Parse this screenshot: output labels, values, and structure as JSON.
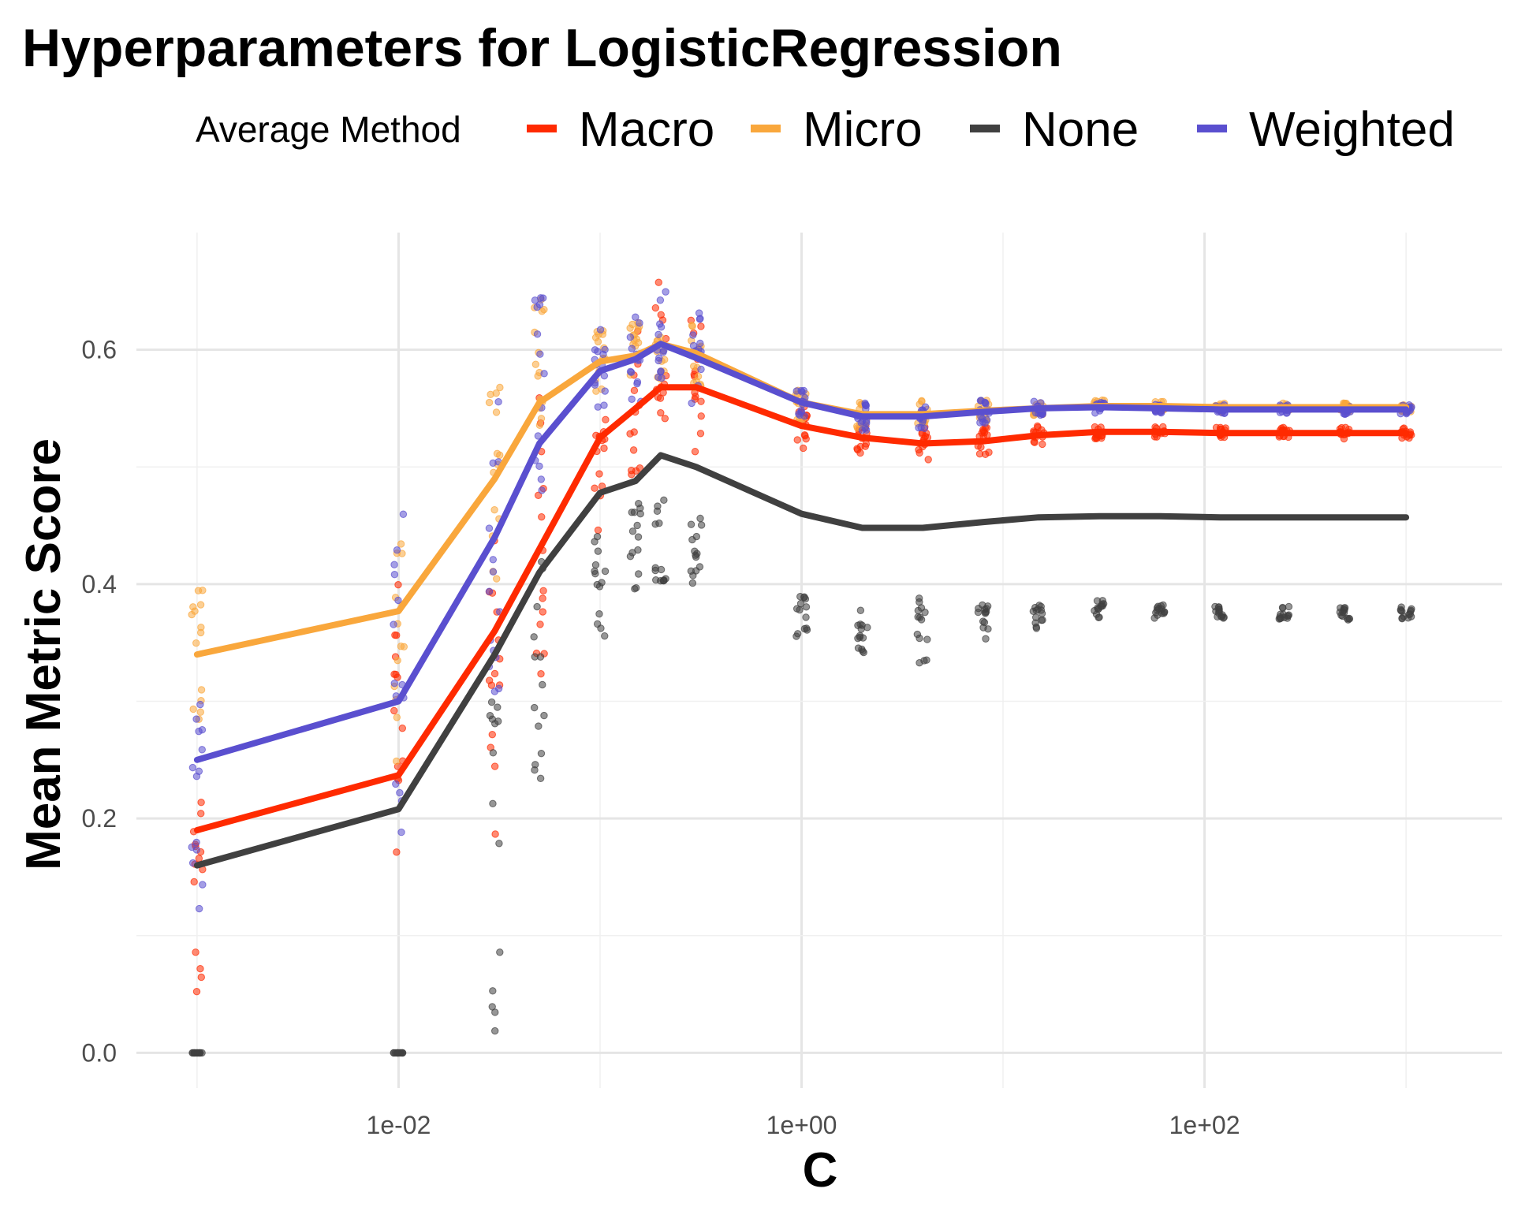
{
  "chart_data": {
    "type": "line",
    "title": "Hyperparameters for LogisticRegression",
    "xlabel": "C",
    "ylabel": "Mean Metric Score",
    "x_scale": "log10",
    "xlim": [
      0.0005,
      3000
    ],
    "ylim": [
      -0.03,
      0.7
    ],
    "x_ticks": [
      0.01,
      1,
      100
    ],
    "x_tick_labels": [
      "1e-02",
      "1e+00",
      "1e+02"
    ],
    "y_ticks": [
      0.0,
      0.2,
      0.4,
      0.6
    ],
    "y_tick_labels": [
      "0.0",
      "0.2",
      "0.4",
      "0.6"
    ],
    "grid": true,
    "legend": {
      "title": "Average Method",
      "position": "top"
    },
    "x": [
      0.001,
      0.01,
      0.03,
      0.05,
      0.1,
      0.15,
      0.2,
      0.3,
      1,
      2,
      4,
      8,
      15,
      30,
      60,
      120,
      250,
      500,
      1000
    ],
    "series": [
      {
        "name": "Macro",
        "color": "#ff2a00",
        "values": [
          0.19,
          0.237,
          0.36,
          0.43,
          0.525,
          0.55,
          0.568,
          0.568,
          0.535,
          0.525,
          0.52,
          0.522,
          0.527,
          0.53,
          0.53,
          0.529,
          0.529,
          0.529,
          0.529
        ],
        "point_spread": [
          0.1,
          0.14,
          0.16,
          0.12,
          0.06,
          0.07,
          0.07,
          0.06,
          0.02,
          0.015,
          0.015,
          0.012,
          0.008,
          0.006,
          0.005,
          0.005,
          0.005,
          0.005,
          0.005
        ],
        "point_offset": [
          -0.06,
          0.03,
          -0.02,
          0.01,
          -0.02,
          0.0,
          0.03,
          0.0,
          0.0,
          0.0,
          0.0,
          0.0,
          0.0,
          0.0,
          0.0,
          0.0,
          0.0,
          0.0,
          0.0
        ]
      },
      {
        "name": "Micro",
        "color": "#f9a73c",
        "values": [
          0.34,
          0.377,
          0.49,
          0.555,
          0.59,
          0.595,
          0.605,
          0.597,
          0.555,
          0.545,
          0.545,
          0.548,
          0.55,
          0.552,
          0.552,
          0.551,
          0.551,
          0.551,
          0.551
        ],
        "point_spread": [
          0.07,
          0.1,
          0.1,
          0.06,
          0.03,
          0.03,
          0.03,
          0.03,
          0.015,
          0.012,
          0.012,
          0.01,
          0.006,
          0.005,
          0.004,
          0.004,
          0.004,
          0.004,
          0.004
        ],
        "point_offset": [
          0.0,
          -0.03,
          -0.02,
          0.03,
          0.0,
          0.0,
          0.0,
          0.0,
          0.0,
          0.0,
          0.0,
          0.0,
          0.0,
          0.0,
          0.0,
          0.0,
          0.0,
          0.0,
          0.0
        ]
      },
      {
        "name": "None",
        "color": "#404040",
        "values": [
          0.16,
          0.208,
          0.34,
          0.41,
          0.478,
          0.488,
          0.51,
          0.5,
          0.46,
          0.448,
          0.448,
          0.453,
          0.457,
          0.458,
          0.458,
          0.457,
          0.457,
          0.457,
          0.457
        ],
        "point_spread": [
          0.0,
          0.0,
          0.15,
          0.1,
          0.05,
          0.05,
          0.04,
          0.03,
          0.02,
          0.02,
          0.03,
          0.02,
          0.01,
          0.008,
          0.007,
          0.006,
          0.006,
          0.006,
          0.006
        ],
        "point_offset": [
          -0.16,
          -0.208,
          -0.18,
          -0.08,
          -0.08,
          -0.06,
          -0.07,
          -0.07,
          -0.09,
          -0.09,
          -0.09,
          -0.085,
          -0.085,
          -0.08,
          -0.08,
          -0.082,
          -0.082,
          -0.082,
          -0.082
        ]
      },
      {
        "name": "Weighted",
        "color": "#5a4fcf",
        "values": [
          0.25,
          0.3,
          0.44,
          0.52,
          0.582,
          0.592,
          0.605,
          0.593,
          0.555,
          0.543,
          0.543,
          0.547,
          0.55,
          0.551,
          0.55,
          0.549,
          0.549,
          0.549,
          0.549
        ],
        "point_spread": [
          0.1,
          0.15,
          0.14,
          0.1,
          0.04,
          0.04,
          0.04,
          0.04,
          0.015,
          0.012,
          0.012,
          0.01,
          0.006,
          0.005,
          0.004,
          0.004,
          0.004,
          0.004,
          0.004
        ],
        "point_offset": [
          -0.04,
          0.02,
          0.0,
          0.03,
          0.0,
          0.0,
          0.01,
          0.0,
          0.0,
          0.0,
          0.0,
          0.0,
          0.0,
          0.0,
          0.0,
          0.0,
          0.0,
          0.0,
          0.0
        ]
      }
    ]
  }
}
